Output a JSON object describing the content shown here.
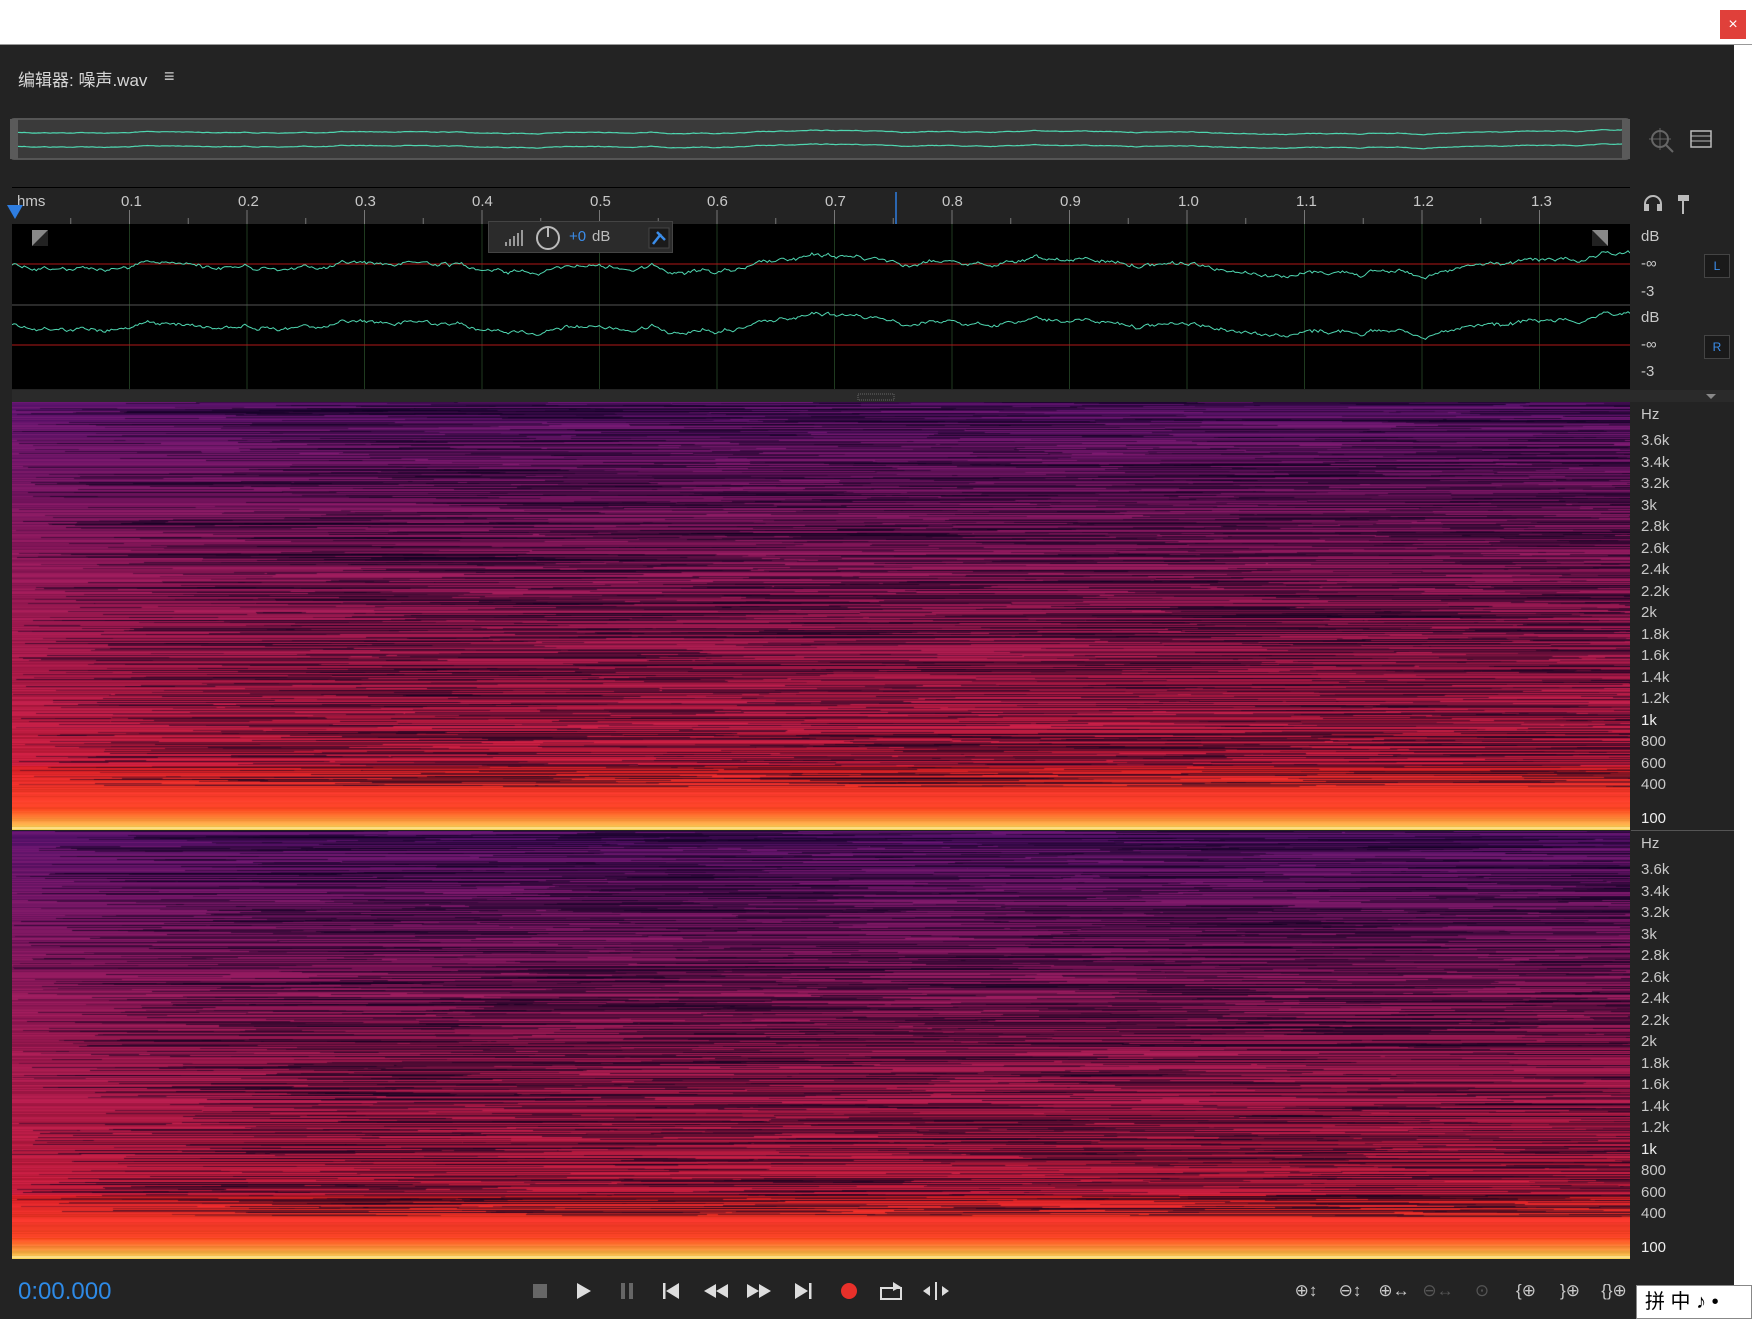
{
  "window": {
    "close_label": "×"
  },
  "editor": {
    "title": "编辑器: 噪声.wav",
    "menu_glyph": "≡"
  },
  "ruler": {
    "unit": "hms",
    "ticks": [
      "0.1",
      "0.2",
      "0.3",
      "0.4",
      "0.5",
      "0.6",
      "0.7",
      "0.8",
      "0.9",
      "1.0",
      "1.1",
      "1.2",
      "1.3"
    ]
  },
  "hud": {
    "gain": "+0",
    "unit": "dB"
  },
  "waveform": {
    "channels": [
      {
        "badge": "L",
        "scale": [
          "dB",
          "-∞",
          "-3"
        ]
      },
      {
        "badge": "R",
        "scale": [
          "dB",
          "-∞",
          "-3"
        ]
      }
    ],
    "color": "#4fd6b0",
    "zero_line_color": "#b01818"
  },
  "spectrogram": {
    "scale": [
      "Hz",
      "3.6k",
      "3.4k",
      "3.2k",
      "3k",
      "2.8k",
      "2.6k",
      "2.4k",
      "2.2k",
      "2k",
      "1.8k",
      "1.6k",
      "1.4k",
      "1.2k",
      "1k",
      "800",
      "600",
      "400",
      "100"
    ]
  },
  "transport": {
    "timecode": "0:00.000"
  },
  "ime": {
    "text": "拼 中 ♪ •"
  }
}
